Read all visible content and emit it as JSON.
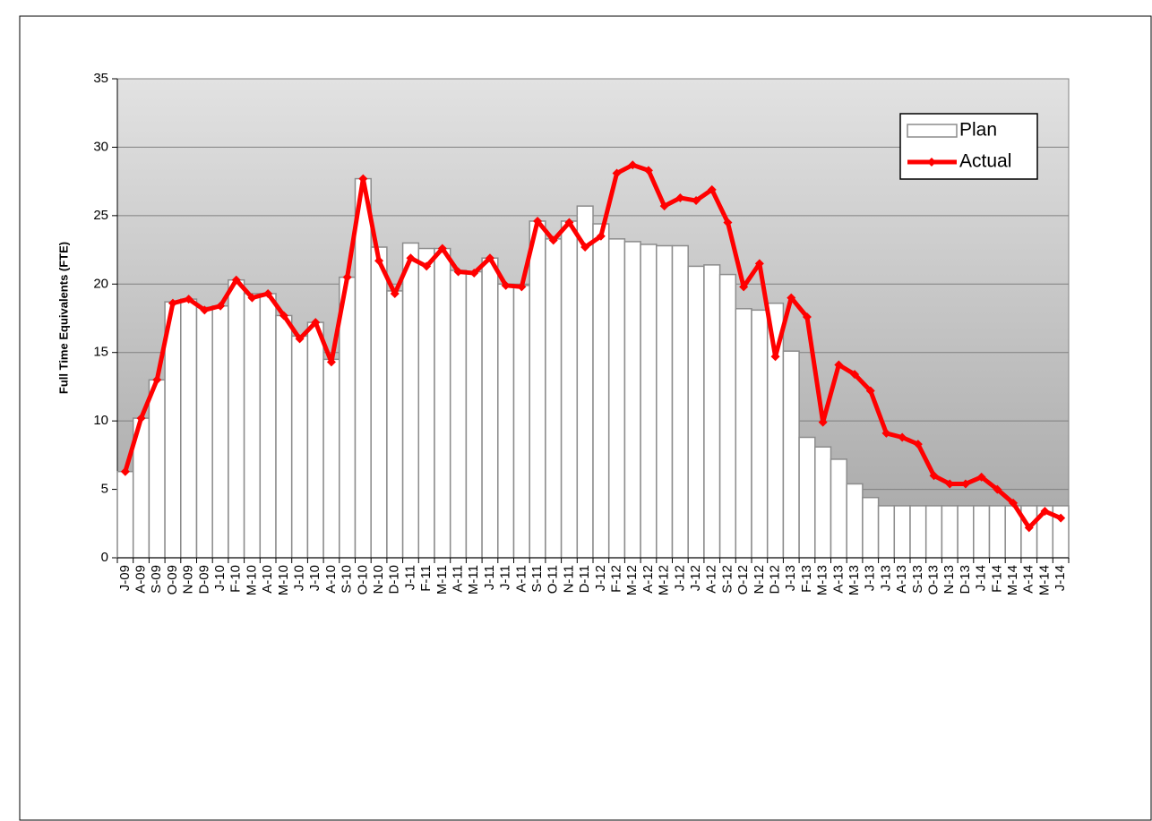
{
  "chart_data": {
    "type": "bar_line",
    "y_label": "Full Time Equivalents (FTE)",
    "categories": [
      "J-09",
      "A-09",
      "S-09",
      "O-09",
      "N-09",
      "D-09",
      "J-10",
      "F-10",
      "M-10",
      "A-10",
      "M-10",
      "J-10",
      "J-10",
      "A-10",
      "S-10",
      "O-10",
      "N-10",
      "D-10",
      "J-11",
      "F-11",
      "M-11",
      "A-11",
      "M-11",
      "J-11",
      "J-11",
      "A-11",
      "S-11",
      "O-11",
      "N-11",
      "D-11",
      "J-12",
      "F-12",
      "M-12",
      "A-12",
      "M-12",
      "J-12",
      "J-12",
      "A-12",
      "S-12",
      "O-12",
      "N-12",
      "D-12",
      "J-13",
      "F-13",
      "M-13",
      "A-13",
      "M-13",
      "J-13",
      "J-13",
      "A-13",
      "S-13",
      "O-13",
      "N-13",
      "D-13",
      "J-14",
      "F-14",
      "M-14",
      "A-14",
      "M-14",
      "J-14"
    ],
    "series": [
      {
        "name": "Plan",
        "type": "bar",
        "color": "#ffffff",
        "edge": "#8c8c8c",
        "values": [
          6.3,
          10.2,
          13,
          18.7,
          18.9,
          18.3,
          18.4,
          20.3,
          19.3,
          19.3,
          17.7,
          16.2,
          17.2,
          14.5,
          20.5,
          27.7,
          22.7,
          19.5,
          23.0,
          22.6,
          22.6,
          21.0,
          20.9,
          21.9,
          20.0,
          19.9,
          24.6,
          23.3,
          24.6,
          25.7,
          24.4,
          23.3,
          23.1,
          22.9,
          22.8,
          22.8,
          21.3,
          21.4,
          20.7,
          18.2,
          18.1,
          18.6,
          15.1,
          8.8,
          8.1,
          7.2,
          5.4,
          4.4,
          3.8,
          3.8,
          3.8,
          3.8,
          3.8,
          3.8,
          3.8,
          3.8,
          3.8,
          3.8,
          3.8,
          3.8
        ]
      },
      {
        "name": "Actual",
        "type": "line",
        "color": "#ff0000",
        "values": [
          6.3,
          10.2,
          13.0,
          18.6,
          18.9,
          18.1,
          18.4,
          20.3,
          19.0,
          19.3,
          17.7,
          16.0,
          17.2,
          14.3,
          20.5,
          27.7,
          21.7,
          19.3,
          21.9,
          21.3,
          22.6,
          20.9,
          20.8,
          21.9,
          19.9,
          19.8,
          24.6,
          23.2,
          24.5,
          22.7,
          23.5,
          28.1,
          28.7,
          28.3,
          25.7,
          26.3,
          26.1,
          26.9,
          24.5,
          19.8,
          21.5,
          14.7,
          19.0,
          17.6,
          9.9,
          14.1,
          13.4,
          12.2,
          9.1,
          8.8,
          8.3,
          6.0,
          5.4,
          5.4,
          5.9,
          5.0,
          4.0,
          2.2,
          3.4,
          2.9
        ]
      }
    ],
    "ylim": [
      0,
      35
    ],
    "yticks": [
      0,
      5,
      10,
      15,
      20,
      25,
      30,
      35
    ],
    "grid": true,
    "legend": "upper right"
  }
}
